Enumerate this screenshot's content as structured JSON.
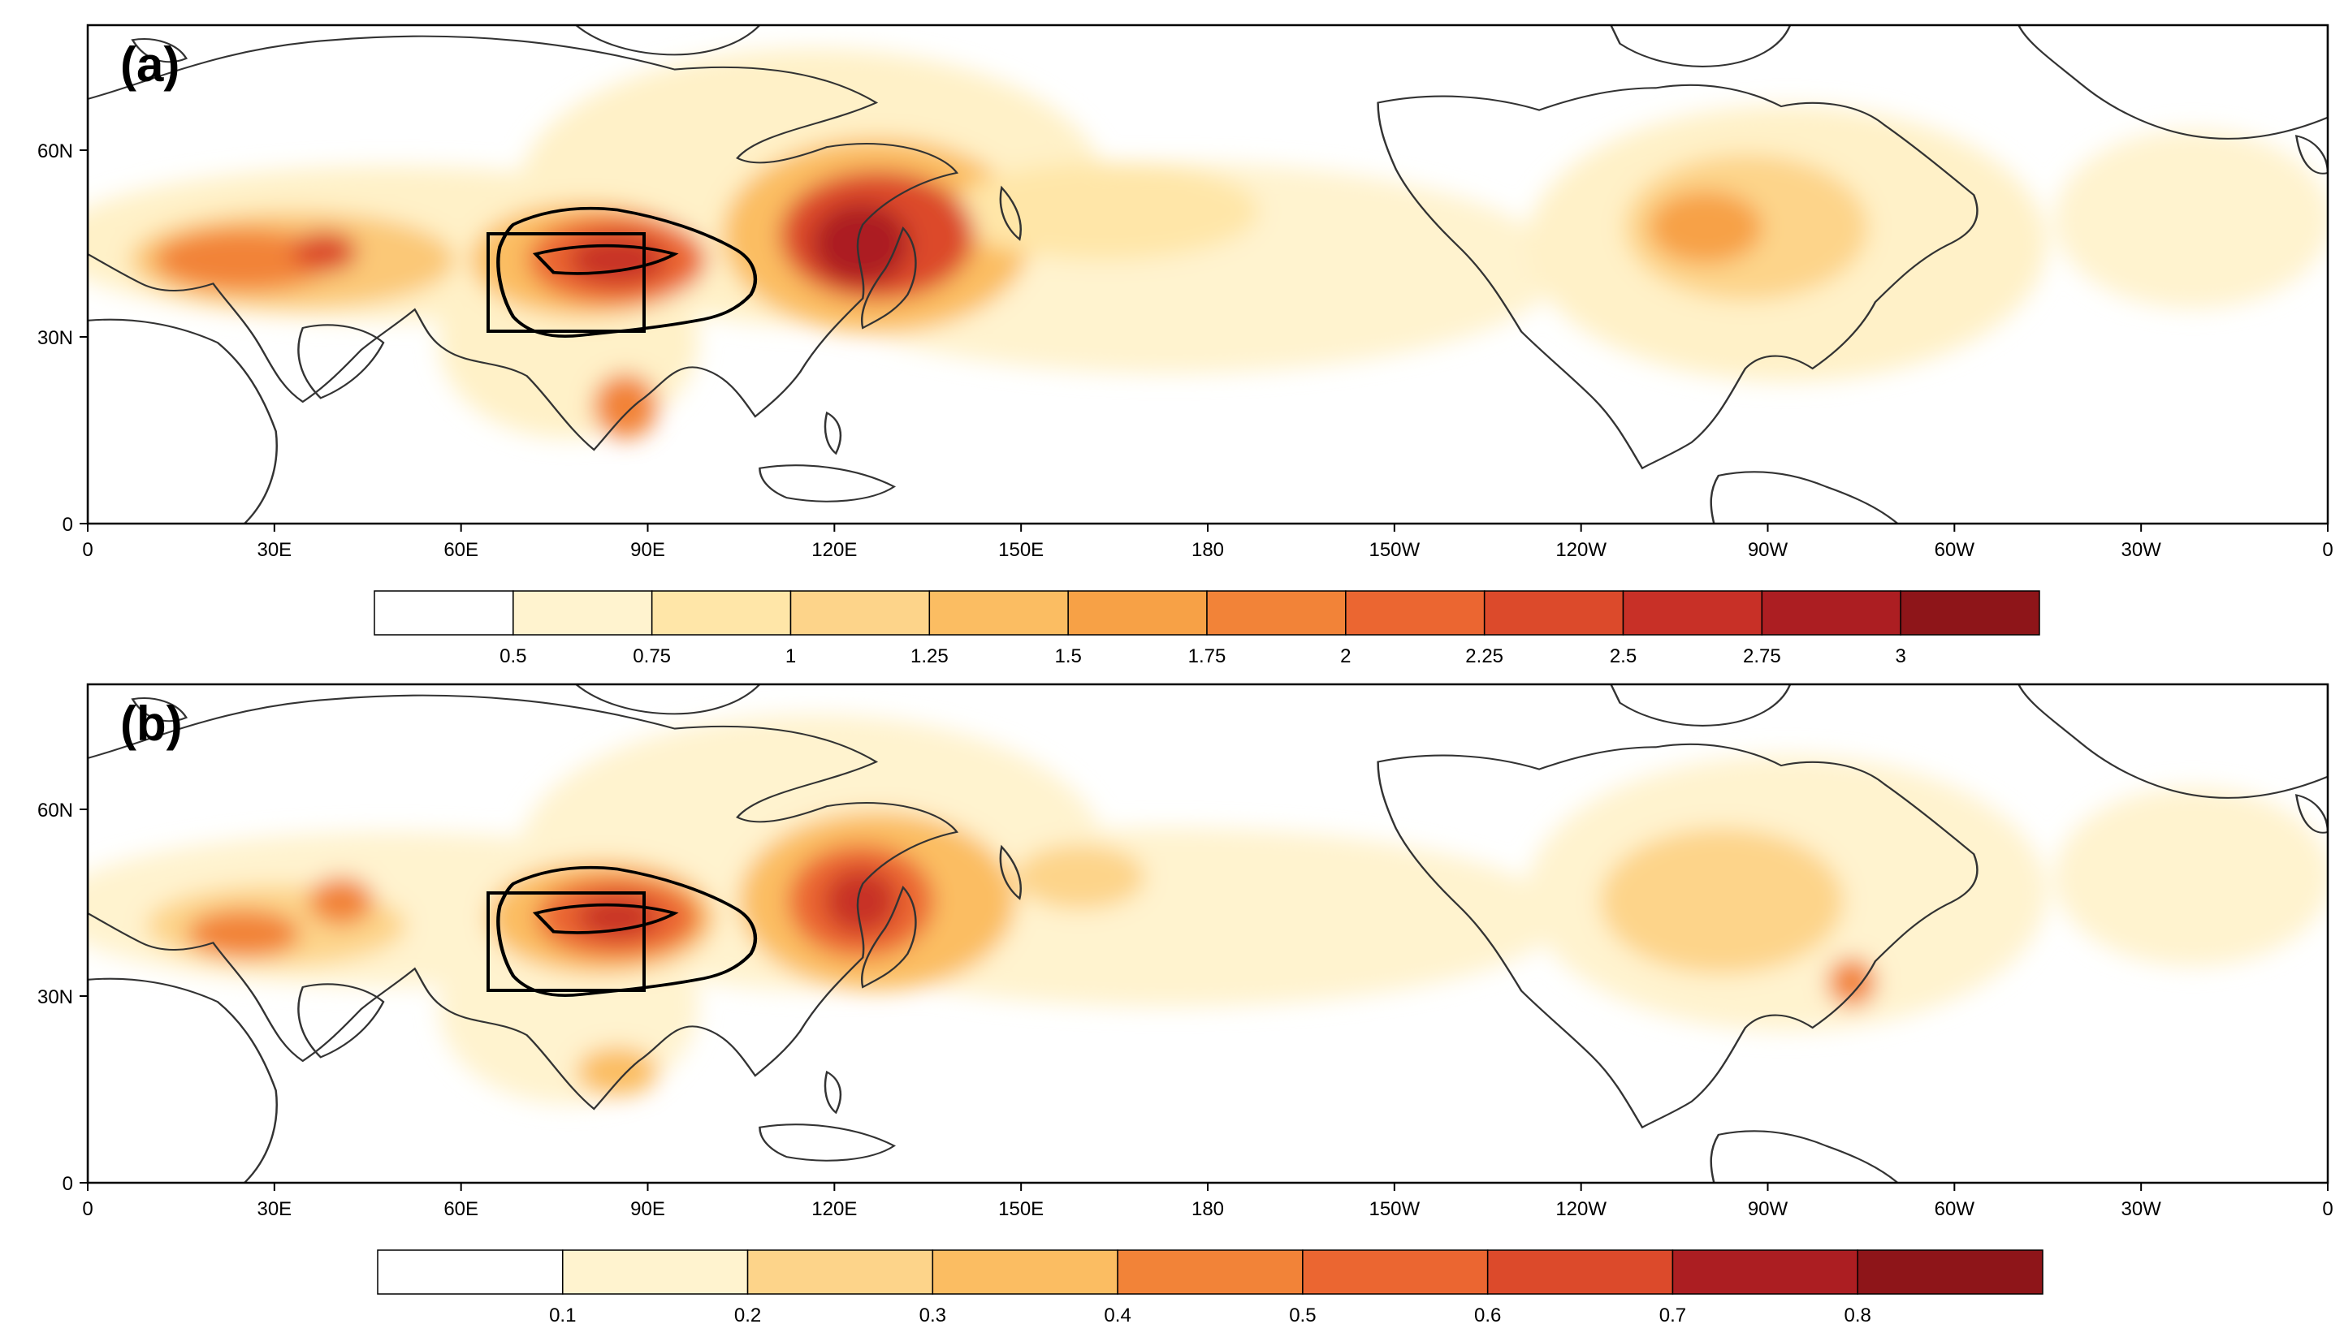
{
  "figure": {
    "panels": [
      {
        "id": "a",
        "label": "(a)",
        "colorbar": {
          "labels": [
            "0.5",
            "0.75",
            "1",
            "1.25",
            "1.5",
            "1.75",
            "2",
            "2.25",
            "2.5",
            "2.75",
            "3"
          ]
        }
      },
      {
        "id": "b",
        "label": "(b)",
        "colorbar": {
          "labels": [
            "0.1",
            "0.2",
            "0.3",
            "0.4",
            "0.5",
            "0.6",
            "0.7",
            "0.8"
          ]
        }
      }
    ],
    "x_ticks": [
      "0",
      "30E",
      "60E",
      "90E",
      "120E",
      "150E",
      "180",
      "150W",
      "120W",
      "90W",
      "60W",
      "30W",
      "0"
    ],
    "y_ticks": [
      "60N",
      "30N",
      "0"
    ],
    "colors": {
      "levels": [
        "#ffffff",
        "#fff3cf",
        "#ffe6a8",
        "#fdd48a",
        "#fbbd62",
        "#f7a146",
        "#f28338",
        "#eb6631",
        "#dc4a2b",
        "#c83027",
        "#ac1e22",
        "#8e1519"
      ],
      "coast": "#333333",
      "box": "#000000"
    }
  }
}
